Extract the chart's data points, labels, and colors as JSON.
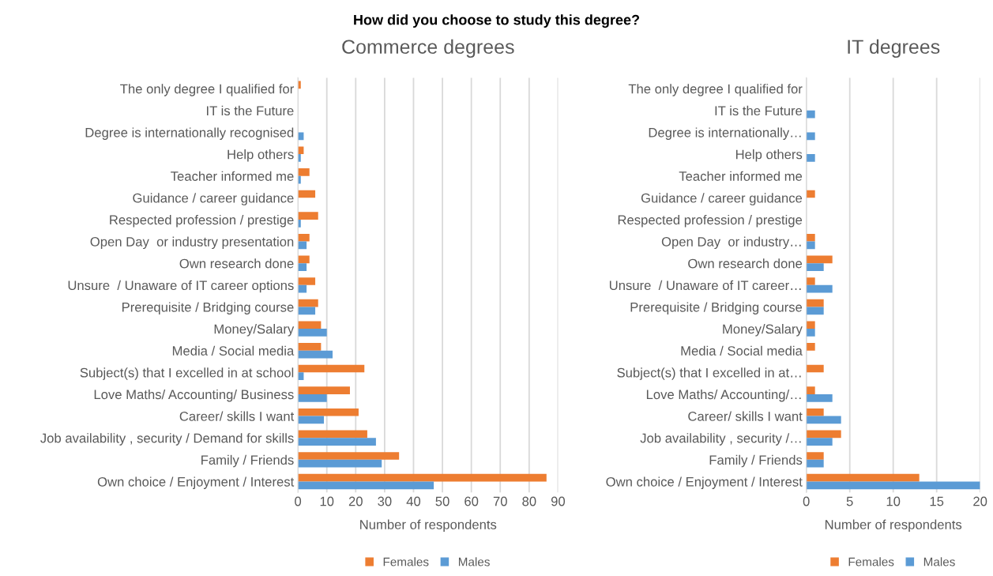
{
  "chart_data": [
    {
      "type": "bar",
      "orientation": "horizontal",
      "title": "Commerce degrees",
      "xlabel": "Number of respondents",
      "annotations": [
        "How did you choose to study this degree?"
      ],
      "categories": [
        "The only degree I qualified for",
        "IT is the Future",
        "Degree is internationally recognised",
        "Help others",
        "Teacher informed me",
        "Guidance / career guidance",
        "Respected profession / prestige",
        "Open Day  or industry presentation",
        "Own research done",
        "Unsure  / Unaware of IT career options",
        "Prerequisite / Bridging course",
        "Money/Salary",
        "Media / Social media",
        "Subject(s) that I excelled in at school",
        "Love Maths/ Accounting/ Business",
        "Career/ skills I want",
        "Job availability , security / Demand for skills",
        "Family / Friends",
        "Own choice / Enjoyment / Interest"
      ],
      "series": [
        {
          "name": "Females",
          "color": "#ed7d31",
          "values": [
            1,
            0,
            0,
            2,
            4,
            6,
            7,
            4,
            4,
            6,
            7,
            8,
            8,
            23,
            18,
            21,
            24,
            35,
            86
          ]
        },
        {
          "name": "Males",
          "color": "#5b9bd5",
          "values": [
            0,
            0,
            2,
            1,
            1,
            0,
            1,
            3,
            3,
            3,
            6,
            10,
            12,
            2,
            10,
            9,
            27,
            29,
            47
          ]
        }
      ],
      "xlim": [
        0,
        90
      ],
      "xticks": [
        0,
        10,
        20,
        30,
        40,
        50,
        60,
        70,
        80,
        90
      ],
      "grid": "x",
      "legend": "bottom"
    },
    {
      "type": "bar",
      "orientation": "horizontal",
      "title": "IT degrees",
      "xlabel": "Number of respondents",
      "categories": [
        "The only degree I qualified for",
        "IT is the Future",
        "Degree is internationally…",
        "Help others",
        "Teacher informed me",
        "Guidance / career guidance",
        "Respected profession / prestige",
        "Open Day  or industry…",
        "Own research done",
        "Unsure  / Unaware of IT career…",
        "Prerequisite / Bridging course",
        "Money/Salary",
        "Media / Social media",
        "Subject(s) that I excelled in at…",
        "Love Maths/ Accounting/…",
        "Career/ skills I want",
        "Job availability , security /…",
        "Family / Friends",
        "Own choice / Enjoyment / Interest"
      ],
      "series": [
        {
          "name": "Females",
          "color": "#ed7d31",
          "values": [
            0,
            0,
            0,
            0,
            0,
            1,
            0,
            1,
            3,
            1,
            2,
            1,
            1,
            2,
            1,
            2,
            4,
            2,
            13
          ]
        },
        {
          "name": "Males",
          "color": "#5b9bd5",
          "values": [
            0,
            1,
            1,
            1,
            0,
            0,
            0,
            1,
            2,
            3,
            2,
            1,
            0,
            0,
            3,
            4,
            3,
            2,
            20
          ]
        }
      ],
      "xlim": [
        0,
        20
      ],
      "xticks": [
        0,
        5,
        10,
        15,
        20
      ],
      "grid": "x",
      "legend": "bottom"
    }
  ]
}
